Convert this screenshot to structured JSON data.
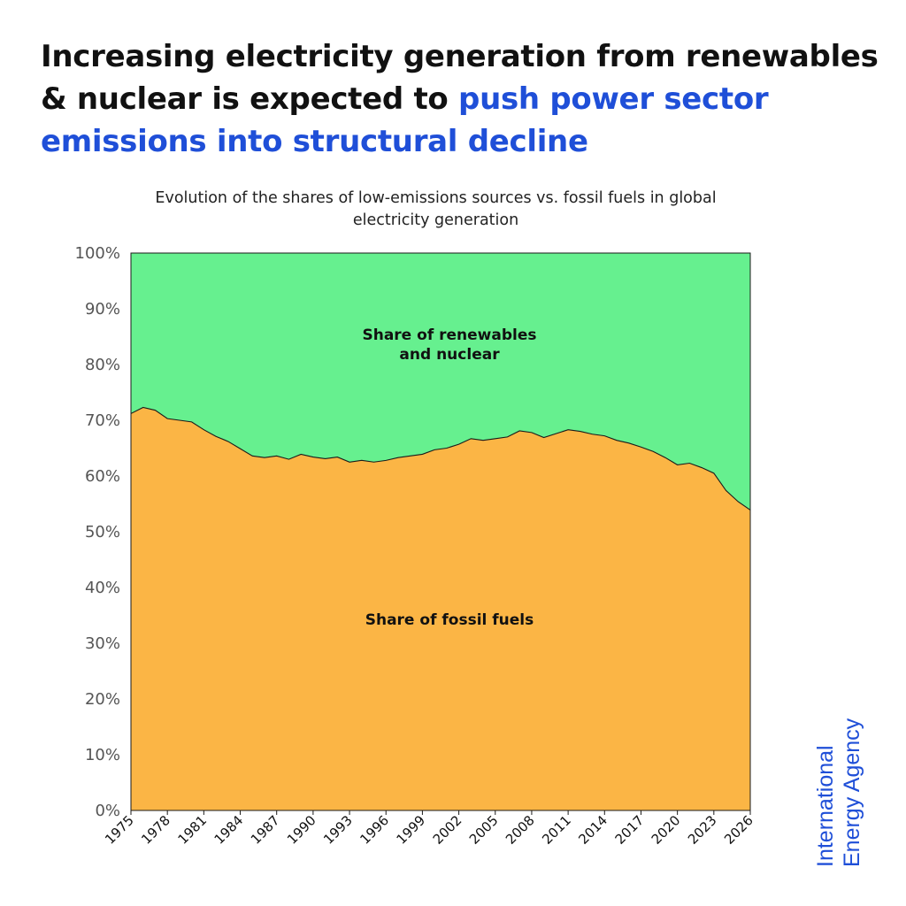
{
  "headline": {
    "part1": "Increasing electricity generation from renewables & nuclear is expected to ",
    "highlight": "push power sector emissions into structural decline"
  },
  "colors": {
    "headline_accent": "#1f4fd8",
    "renewables_nuclear": "#66f08f",
    "fossil_fuels": "#fbb545",
    "brand": "#1f4fd8"
  },
  "brand": {
    "line1": "International",
    "line2": "Energy Agency"
  },
  "chart_data": {
    "type": "area",
    "title": "Evolution of the shares of low-emissions sources vs. fossil fuels in global electricity generation",
    "xlabel": "",
    "ylabel": "",
    "ylim": [
      0,
      100
    ],
    "xlim": [
      1975,
      2026
    ],
    "y_ticks": [
      "0%",
      "10%",
      "20%",
      "30%",
      "40%",
      "50%",
      "60%",
      "70%",
      "80%",
      "90%",
      "100%"
    ],
    "x_ticks": [
      "1975",
      "1978",
      "1981",
      "1984",
      "1987",
      "1990",
      "1993",
      "1996",
      "1999",
      "2002",
      "2005",
      "2008",
      "2011",
      "2014",
      "2017",
      "2020",
      "2023",
      "2026"
    ],
    "grid": false,
    "legend": "none",
    "annotations": [
      {
        "text_lines": [
          "Share of renewables",
          "and nuclear"
        ],
        "series": "renewables_nuclear"
      },
      {
        "text_lines": [
          "Share of fossil fuels"
        ],
        "series": "fossil_fuels"
      }
    ],
    "x": [
      1975,
      1976,
      1977,
      1978,
      1979,
      1980,
      1981,
      1982,
      1983,
      1984,
      1985,
      1986,
      1987,
      1988,
      1989,
      1990,
      1991,
      1992,
      1993,
      1994,
      1995,
      1996,
      1997,
      1998,
      1999,
      2000,
      2001,
      2002,
      2003,
      2004,
      2005,
      2006,
      2007,
      2008,
      2009,
      2010,
      2011,
      2012,
      2013,
      2014,
      2015,
      2016,
      2017,
      2018,
      2019,
      2020,
      2021,
      2022,
      2023,
      2024,
      2025,
      2026
    ],
    "series": [
      {
        "name": "Share of fossil fuels",
        "key": "fossil_fuels",
        "values": [
          71.2,
          72.3,
          71.8,
          70.3,
          70.0,
          69.7,
          68.3,
          67.1,
          66.2,
          64.9,
          63.6,
          63.3,
          63.6,
          63.0,
          63.9,
          63.4,
          63.1,
          63.4,
          62.5,
          62.8,
          62.5,
          62.8,
          63.3,
          63.6,
          63.9,
          64.7,
          65.0,
          65.7,
          66.7,
          66.4,
          66.7,
          67.0,
          68.1,
          67.8,
          66.9,
          67.6,
          68.3,
          68.0,
          67.5,
          67.2,
          66.4,
          65.9,
          65.2,
          64.4,
          63.3,
          62.0,
          62.3,
          61.5,
          60.5,
          57.4,
          55.4,
          53.9
        ]
      },
      {
        "name": "Share of renewables and nuclear",
        "key": "renewables_nuclear",
        "values": [
          28.8,
          27.7,
          28.2,
          29.7,
          30.0,
          30.3,
          31.7,
          32.9,
          33.8,
          35.1,
          36.4,
          36.7,
          36.4,
          37.0,
          36.1,
          36.6,
          36.9,
          36.6,
          37.5,
          37.2,
          37.5,
          37.2,
          36.7,
          36.4,
          36.1,
          35.3,
          35.0,
          34.3,
          33.3,
          33.6,
          33.3,
          33.0,
          31.9,
          32.2,
          33.1,
          32.4,
          31.7,
          32.0,
          32.5,
          32.8,
          33.6,
          34.1,
          34.8,
          35.6,
          36.7,
          38.0,
          37.7,
          38.5,
          39.5,
          42.6,
          44.6,
          46.1
        ]
      }
    ]
  }
}
